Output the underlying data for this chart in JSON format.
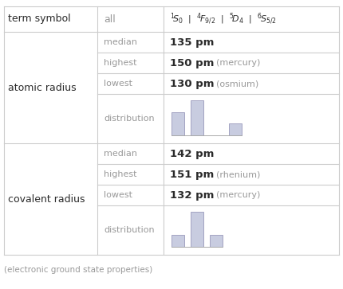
{
  "bg_color": "#ffffff",
  "text_color_dark": "#2a2a2a",
  "text_color_medium": "#999999",
  "line_color": "#cccccc",
  "bar_color": "#c8cce0",
  "bar_edge_color": "#9999bb",
  "sections": [
    {
      "label": "atomic radius",
      "rows": [
        {
          "sub": "median",
          "value": "135 pm",
          "extra": ""
        },
        {
          "sub": "highest",
          "value": "150 pm",
          "extra": "(mercury)"
        },
        {
          "sub": "lowest",
          "value": "130 pm",
          "extra": "(osmium)"
        },
        {
          "sub": "distribution",
          "hist": [
            2,
            3,
            0,
            1
          ]
        }
      ]
    },
    {
      "label": "covalent radius",
      "rows": [
        {
          "sub": "median",
          "value": "142 pm",
          "extra": ""
        },
        {
          "sub": "highest",
          "value": "151 pm",
          "extra": "(rhenium)"
        },
        {
          "sub": "lowest",
          "value": "132 pm",
          "extra": "(mercury)"
        },
        {
          "sub": "distribution",
          "hist": [
            1,
            3,
            1
          ]
        }
      ]
    }
  ],
  "footer": "(electronic ground state properties)",
  "figsize": [
    4.3,
    3.63
  ],
  "dpi": 100
}
